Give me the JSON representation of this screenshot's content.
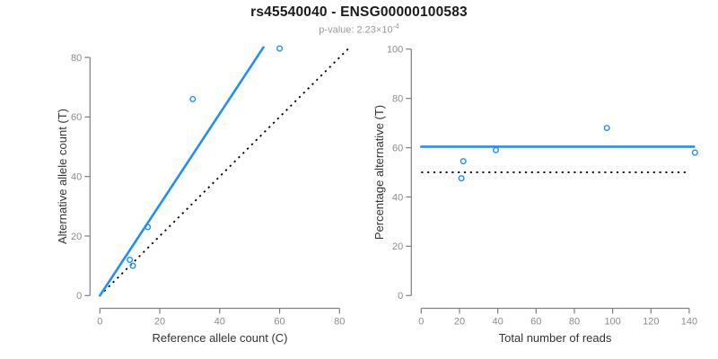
{
  "header": {
    "title": "rs45540040 - ENSG00000100583",
    "subtitle_prefix": "p-value: ",
    "subtitle_mantissa": "2.23×10",
    "subtitle_exponent": "-4"
  },
  "colors": {
    "accent_blue": "#1e8fff",
    "axis_gray": "#7f7f7f",
    "tick_label_gray": "#8c8c8c",
    "axis_title_dark": "#333333",
    "dotted_black": "#000000",
    "title_black": "#1a1a1a",
    "subtitle_gray": "#9a9a9a",
    "background": "#ffffff"
  },
  "chart_data": [
    {
      "type": "scatter",
      "panel": "left",
      "xlabel": "Reference allele count (C)",
      "ylabel": "Alternative allele count (T)",
      "xticks": [
        0,
        20,
        40,
        60,
        80
      ],
      "yticks": [
        0,
        20,
        40,
        60,
        80
      ],
      "xlim": [
        0,
        83
      ],
      "ylim": [
        0,
        84
      ],
      "grid": false,
      "legend": "none",
      "points": [
        [
          10,
          12
        ],
        [
          11,
          10
        ],
        [
          16,
          23
        ],
        [
          31,
          66
        ],
        [
          60,
          83
        ]
      ],
      "fit_line": {
        "x1": 0,
        "y1": 0,
        "x2": 54.6,
        "y2": 83.4,
        "style": "solid",
        "color": "#1e8fff",
        "meaning": "fitted allelic ratio slope 1.53"
      },
      "reference_line": {
        "x1": 0,
        "y1": 0,
        "x2": 83,
        "y2": 83,
        "style": "dotted",
        "color": "#000000",
        "meaning": "identity y=x"
      }
    },
    {
      "type": "scatter",
      "panel": "right",
      "xlabel": "Total number of reads",
      "ylabel": "Percentage alternative (T)",
      "xticks": [
        0,
        20,
        40,
        60,
        80,
        100,
        120,
        140
      ],
      "yticks": [
        0,
        20,
        40,
        60,
        80,
        100
      ],
      "xlim": [
        0,
        143
      ],
      "ylim": [
        0,
        100
      ],
      "grid": false,
      "legend": "none",
      "points": [
        [
          22,
          54.5
        ],
        [
          21,
          47.6
        ],
        [
          39,
          59.0
        ],
        [
          97,
          68.0
        ],
        [
          143,
          58.0
        ]
      ],
      "fit_line": {
        "x1": 0,
        "y1": 60.4,
        "x2": 142.5,
        "y2": 60.4,
        "style": "solid",
        "color": "#1e8fff",
        "meaning": "overall percentage alternative 60.4%"
      },
      "reference_line": {
        "x1": 0,
        "y1": 50,
        "x2": 140,
        "y2": 50,
        "style": "dotted",
        "color": "#000000",
        "meaning": "null expectation 50%"
      }
    }
  ]
}
